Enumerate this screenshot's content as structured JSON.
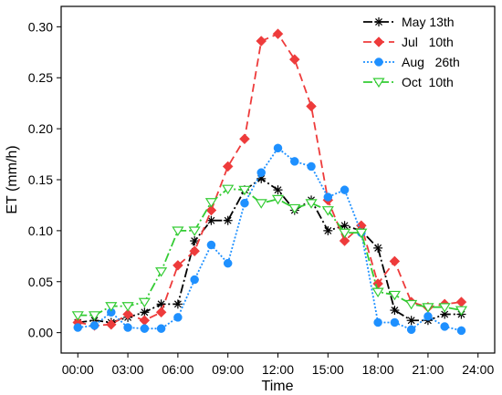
{
  "chart_data": {
    "type": "line",
    "xlabel": "Time",
    "ylabel": "ET  (mm/h)",
    "xlim": [
      -1,
      25
    ],
    "ylim": [
      -0.02,
      0.32
    ],
    "x_ticks": [
      0,
      3,
      6,
      9,
      12,
      15,
      18,
      21,
      24
    ],
    "x_tick_labels": [
      "00:00",
      "03:00",
      "06:00",
      "09:00",
      "12:00",
      "15:00",
      "18:00",
      "21:00",
      "24:00"
    ],
    "y_ticks": [
      0.0,
      0.05,
      0.1,
      0.15,
      0.2,
      0.25,
      0.3
    ],
    "y_tick_labels": [
      "0.00",
      "0.05",
      "0.10",
      "0.15",
      "0.20",
      "0.25",
      "0.30"
    ],
    "legend_position": "top-right",
    "x": [
      0,
      1,
      2,
      3,
      4,
      5,
      6,
      7,
      8,
      9,
      10,
      11,
      12,
      13,
      14,
      15,
      16,
      17,
      18,
      19,
      20,
      21,
      22,
      23
    ],
    "series": [
      {
        "name": "May 13th",
        "color": "#000000",
        "dash": "10,3,2,3",
        "marker": "asterisk",
        "values": [
          0.01,
          0.012,
          0.01,
          0.015,
          0.02,
          0.028,
          0.028,
          0.09,
          0.11,
          0.11,
          0.14,
          0.151,
          0.14,
          0.12,
          0.13,
          0.1,
          0.105,
          0.1,
          0.083,
          0.022,
          0.012,
          0.012,
          0.018,
          0.018
        ]
      },
      {
        "name": "Jul   10th",
        "color": "#ee3b3b",
        "dash": "9,5",
        "marker": "diamond",
        "values": [
          0.01,
          0.007,
          0.008,
          0.018,
          0.012,
          0.02,
          0.066,
          0.08,
          0.12,
          0.163,
          0.19,
          0.286,
          0.293,
          0.268,
          0.222,
          0.13,
          0.09,
          0.105,
          0.048,
          0.07,
          0.03,
          0.025,
          0.028,
          0.03
        ]
      },
      {
        "name": "Aug   26th",
        "color": "#1e90ff",
        "dash": "2,2",
        "marker": "circle",
        "values": [
          0.005,
          0.007,
          0.02,
          0.005,
          0.004,
          0.004,
          0.015,
          0.052,
          0.086,
          0.068,
          0.127,
          0.157,
          0.181,
          0.168,
          0.163,
          0.133,
          0.14,
          0.098,
          0.01,
          0.01,
          0.003,
          0.016,
          0.006,
          0.002
        ]
      },
      {
        "name": "Oct  10th",
        "color": "#33cc33",
        "dash": "10,3,2,3",
        "marker": "triangle-down",
        "values": [
          0.017,
          0.017,
          0.026,
          0.026,
          0.03,
          0.06,
          0.1,
          0.1,
          0.128,
          0.141,
          0.14,
          0.127,
          0.131,
          0.122,
          0.127,
          0.12,
          0.098,
          0.098,
          0.04,
          0.037,
          0.028,
          0.025,
          0.025,
          0.022
        ]
      }
    ]
  }
}
